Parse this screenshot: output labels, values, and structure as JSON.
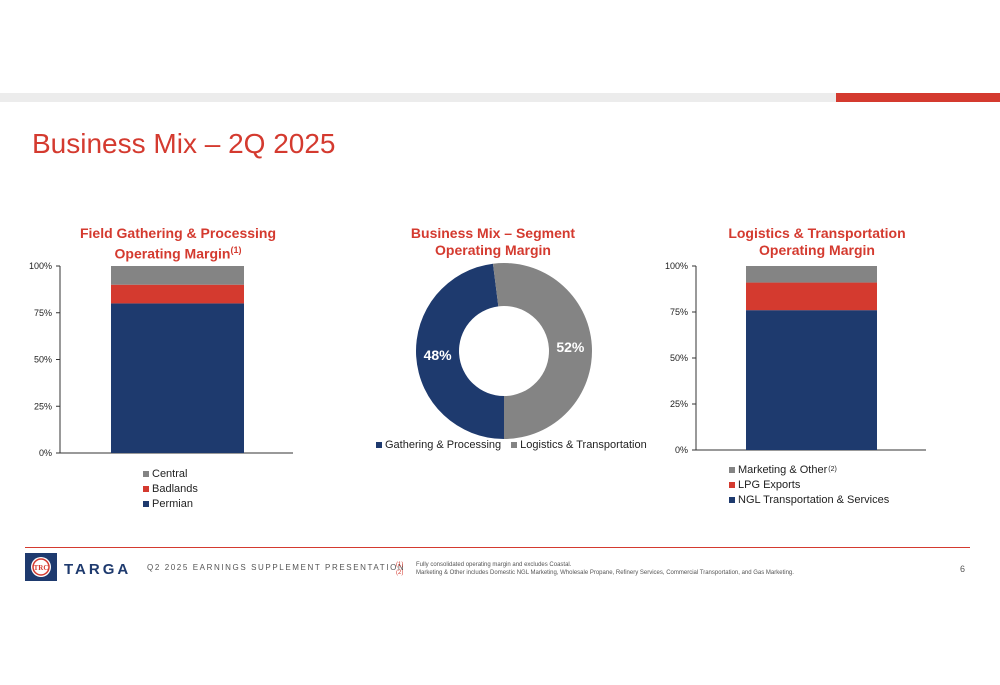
{
  "page_title": "Business Mix – 2Q 2025",
  "chart_data": [
    {
      "type": "bar",
      "stacked": true,
      "title": "Field Gathering & Processing Operating Margin",
      "title_line1": "Field Gathering & Processing",
      "title_line2": "Operating Margin",
      "title_sup": "(1)",
      "yticks": [
        "100%",
        "75%",
        "50%",
        "25%",
        "0%"
      ],
      "ylim": [
        0,
        100
      ],
      "series": [
        {
          "name": "Permian",
          "value": 80,
          "color": "#1e3a6e"
        },
        {
          "name": "Badlands",
          "value": 10,
          "color": "#d43a2f"
        },
        {
          "name": "Central",
          "value": 10,
          "color": "#848484"
        }
      ],
      "legend": [
        {
          "name": "Central",
          "color": "#848484",
          "sup": ""
        },
        {
          "name": "Badlands",
          "color": "#d43a2f",
          "sup": ""
        },
        {
          "name": "Permian",
          "color": "#1e3a6e",
          "sup": ""
        }
      ]
    },
    {
      "type": "pie",
      "donut": true,
      "title": "Business Mix – Segment Operating Margin",
      "title_line1": "Business Mix – Segment",
      "title_line2": "Operating Margin",
      "slices": [
        {
          "name": "Gathering & Processing",
          "value": 48,
          "label": "48%",
          "color": "#1e3a6e"
        },
        {
          "name": "Logistics & Transportation",
          "value": 52,
          "label": "52%",
          "color": "#848484"
        }
      ]
    },
    {
      "type": "bar",
      "stacked": true,
      "title": "Logistics & Transportation Operating Margin",
      "title_line1": "Logistics & Transportation",
      "title_line2": "Operating Margin",
      "yticks": [
        "100%",
        "75%",
        "50%",
        "25%",
        "0%"
      ],
      "ylim": [
        0,
        100
      ],
      "series": [
        {
          "name": "NGL Transportation & Services",
          "value": 76,
          "color": "#1e3a6e"
        },
        {
          "name": "LPG Exports",
          "value": 15,
          "color": "#d43a2f"
        },
        {
          "name": "Marketing & Other",
          "value": 9,
          "color": "#848484"
        }
      ],
      "legend": [
        {
          "name": "Marketing & Other",
          "color": "#848484",
          "sup": "(2)"
        },
        {
          "name": "LPG Exports",
          "color": "#d43a2f",
          "sup": ""
        },
        {
          "name": "NGL Transportation & Services",
          "color": "#1e3a6e",
          "sup": ""
        }
      ]
    }
  ],
  "footer": {
    "brand": "TARGA",
    "subtitle": "Q2 2025 EARNINGS SUPPLEMENT PRESENTATION",
    "footnote_marks": [
      "(1)",
      "(2)"
    ],
    "footnotes": [
      "Fully consolidated operating margin and excludes Coastal.",
      "Marketing & Other includes Domestic NGL Marketing, Wholesale Propane, Refinery Services, Commercial Transportation, and Gas Marketing."
    ],
    "page_number": "6",
    "logo_text": "TRC"
  }
}
